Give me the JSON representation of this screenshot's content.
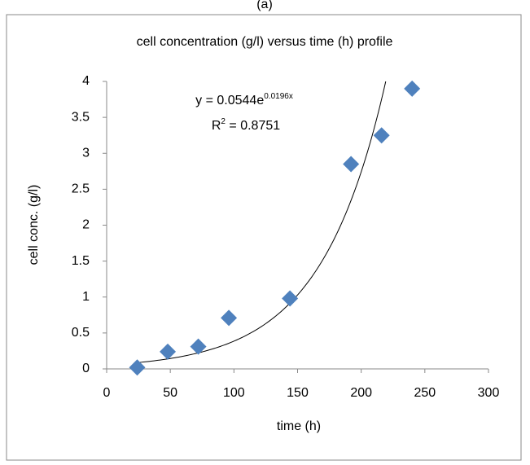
{
  "chart_data": {
    "type": "scatter",
    "caption": "(a)",
    "title": "cell concentration (g/l) versus time (h) profile",
    "x_label": "time (h)",
    "y_label": "cell conc. (g/l)",
    "x": [
      24,
      48,
      72,
      96,
      144,
      192,
      216,
      240
    ],
    "values": [
      0.02,
      0.24,
      0.31,
      0.71,
      0.98,
      2.85,
      3.25,
      3.9
    ],
    "color": "#4f81bd",
    "xlim": [
      0,
      300
    ],
    "xticks": [
      0,
      50,
      100,
      150,
      200,
      250,
      300
    ],
    "ylim": [
      0,
      4
    ],
    "yticks": [
      0,
      0.5,
      1,
      1.5,
      2,
      2.5,
      3,
      3.5,
      4
    ],
    "grid": false,
    "trendline": {
      "equation_lhs": "y = ",
      "a": 0.0544,
      "base": "e",
      "b": 0.0196,
      "variable": "x",
      "r2_symbol": "R",
      "r2_sup": "2",
      "r2_eq": " = ",
      "r2": 0.8751
    }
  }
}
